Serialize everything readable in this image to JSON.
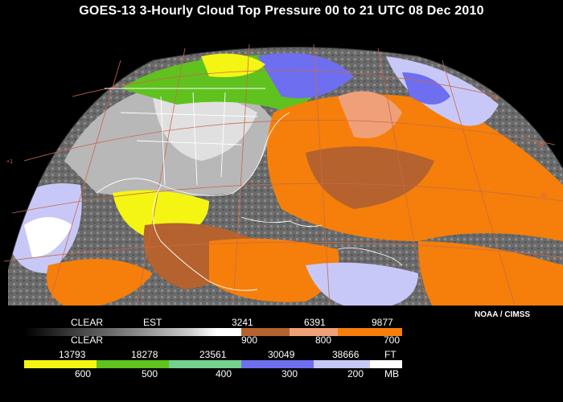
{
  "title": "GOES-13 3-Hourly Cloud Top Pressure  00 to 21 UTC  08 Dec 2010",
  "credit": "NOAA / CIMSS",
  "legend": {
    "row1": {
      "clear_label": "CLEAR",
      "est_label": "EST",
      "heights_ft": [
        "3241",
        "6391",
        "9877"
      ]
    },
    "row2": {
      "clear_label": "CLEAR",
      "pressures_mb": [
        "900",
        "800",
        "700"
      ]
    },
    "row3": {
      "heights_ft": [
        "13793",
        "18278",
        "23561",
        "30049",
        "38666"
      ],
      "unit_ft": "FT"
    },
    "row4": {
      "pressures_mb": [
        "600",
        "500",
        "400",
        "300",
        "200"
      ],
      "unit_mb": "MB"
    }
  },
  "colors": {
    "clear_gray_gradient_start": "#000000",
    "clear_gray_gradient_end": "#ffffff",
    "mb900": "#b5622e",
    "mb800": "#f0a078",
    "mb700": "#f57f0a",
    "mb600": "#f5f514",
    "mb500": "#5fc21e",
    "mb400": "#73d28c",
    "mb300": "#6e6ef0",
    "mb200": "#c8c8f8",
    "high": "#ffffff",
    "grid": "#c86a4a",
    "coast": "#ffffff"
  }
}
